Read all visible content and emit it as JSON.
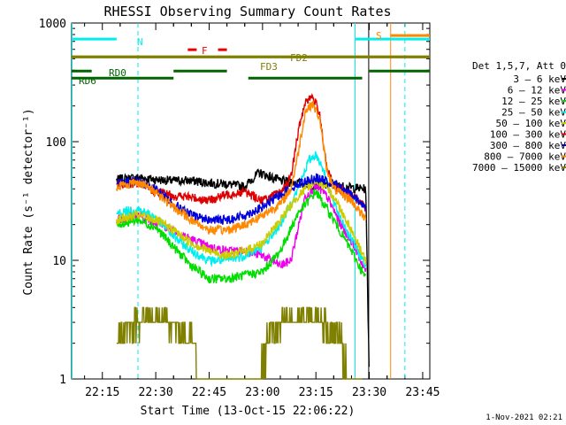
{
  "chart_data": {
    "type": "line",
    "title": "RHESSI Observing Summary Count Rates",
    "xlabel": "Start Time (13-Oct-15 22:06:22)",
    "ylabel": "Count Rate (s⁻¹ detector⁻¹)",
    "y_scale": "log",
    "ylim": [
      1,
      1000
    ],
    "y_ticks": [
      1,
      10,
      100,
      1000
    ],
    "y_tick_labels": [
      "1",
      "10",
      "100",
      "1000"
    ],
    "xlim": [
      "22:06:22",
      "23:47:00"
    ],
    "x_ticks": [
      "22:15",
      "22:30",
      "22:45",
      "23:00",
      "23:15",
      "23:30",
      "23:45"
    ],
    "legend_title": "Det 1,5,7, Att 0",
    "legend_position": "right",
    "timestamp": "1-Nov-2021 02:21",
    "data_start": "22:19:00",
    "data_end": "23:29:30",
    "series": [
      {
        "name": "3 – 6 keV",
        "color": "#000000",
        "x": [
          "22:19",
          "22:25",
          "22:30",
          "22:35",
          "22:40",
          "22:45",
          "22:50",
          "22:55",
          "22:59",
          "23:05",
          "23:10",
          "23:15",
          "23:20",
          "23:25",
          "23:29",
          "23:30"
        ],
        "values": [
          48,
          50,
          48,
          47,
          47,
          45,
          44,
          42,
          55,
          47,
          45,
          43,
          43,
          41,
          40,
          1
        ]
      },
      {
        "name": "6 – 12 keV",
        "color": "#ee00ee",
        "x": [
          "22:19",
          "22:25",
          "22:30",
          "22:35",
          "22:40",
          "22:45",
          "22:50",
          "22:55",
          "23:00",
          "23:05",
          "23:08",
          "23:12",
          "23:15",
          "23:18",
          "23:22",
          "23:26",
          "23:29"
        ],
        "values": [
          22,
          24,
          21,
          18,
          15,
          13,
          12,
          12,
          11,
          9,
          10,
          35,
          42,
          35,
          20,
          13,
          8
        ]
      },
      {
        "name": "12 – 25 keV",
        "color": "#00dd00",
        "x": [
          "22:19",
          "22:25",
          "22:30",
          "22:35",
          "22:40",
          "22:45",
          "22:50",
          "22:55",
          "23:00",
          "23:05",
          "23:10",
          "23:15",
          "23:20",
          "23:25",
          "23:29"
        ],
        "values": [
          20,
          22,
          19,
          13,
          9,
          7,
          7,
          7.5,
          8,
          12,
          25,
          38,
          22,
          12,
          7
        ]
      },
      {
        "name": "25 – 50 keV",
        "color": "#00eeee",
        "x": [
          "22:19",
          "22:25",
          "22:30",
          "22:35",
          "22:40",
          "22:45",
          "22:50",
          "22:55",
          "23:00",
          "23:05",
          "23:10",
          "23:13",
          "23:15",
          "23:17",
          "23:20",
          "23:25",
          "23:29"
        ],
        "values": [
          25,
          27,
          23,
          16,
          12,
          10,
          10,
          11,
          13,
          20,
          40,
          70,
          78,
          60,
          30,
          15,
          9
        ]
      },
      {
        "name": "50 – 100 keV",
        "color": "#cccc00",
        "x": [
          "22:19",
          "22:25",
          "22:30",
          "22:35",
          "22:40",
          "22:45",
          "22:50",
          "22:55",
          "23:00",
          "23:05",
          "23:10",
          "23:15",
          "23:20",
          "23:25",
          "23:29"
        ],
        "values": [
          22,
          24,
          22,
          18,
          14,
          12,
          11,
          12,
          14,
          22,
          35,
          48,
          35,
          18,
          10
        ]
      },
      {
        "name": "100 – 300 keV",
        "color": "#dd0000",
        "x": [
          "22:19",
          "22:25",
          "22:30",
          "22:35",
          "22:40",
          "22:45",
          "22:50",
          "22:55",
          "23:00",
          "23:05",
          "23:08",
          "23:10",
          "23:12",
          "23:14",
          "23:16",
          "23:18",
          "23:20",
          "23:25",
          "23:29"
        ],
        "values": [
          43,
          45,
          38,
          35,
          34,
          32,
          36,
          38,
          32,
          37,
          50,
          120,
          220,
          240,
          180,
          60,
          42,
          36,
          28
        ]
      },
      {
        "name": "300 – 800 keV",
        "color": "#0000dd",
        "x": [
          "22:19",
          "22:25",
          "22:30",
          "22:35",
          "22:40",
          "22:45",
          "22:50",
          "22:55",
          "23:00",
          "23:05",
          "23:10",
          "23:15",
          "23:20",
          "23:25",
          "23:29"
        ],
        "values": [
          45,
          47,
          40,
          30,
          24,
          22,
          22,
          24,
          28,
          36,
          44,
          50,
          44,
          36,
          28
        ]
      },
      {
        "name": "800 – 7000 keV",
        "color": "#ff8800",
        "x": [
          "22:19",
          "22:25",
          "22:30",
          "22:35",
          "22:40",
          "22:45",
          "22:50",
          "22:55",
          "23:00",
          "23:05",
          "23:08",
          "23:10",
          "23:12",
          "23:14",
          "23:16",
          "23:18",
          "23:20",
          "23:25",
          "23:29"
        ],
        "values": [
          42,
          46,
          38,
          28,
          22,
          18,
          18,
          20,
          24,
          30,
          40,
          80,
          180,
          210,
          160,
          60,
          40,
          32,
          22
        ]
      },
      {
        "name": "7000 – 15000 keV",
        "color": "#808000",
        "x": [
          "22:19",
          "22:23",
          "22:28",
          "22:33",
          "22:38",
          "22:43",
          "22:48",
          "22:53",
          "22:58",
          "23:03",
          "23:08",
          "23:13",
          "23:18",
          "23:22",
          "23:25",
          "23:28"
        ],
        "values": [
          2.5,
          4,
          5,
          4,
          3,
          1,
          1,
          1,
          1,
          3,
          4.5,
          5,
          4,
          2,
          1,
          1
        ]
      }
    ],
    "annotations": {
      "lines": [
        {
          "label": "N",
          "color": "#00eeee",
          "style": "solid",
          "x0": "22:06:22",
          "x1": "22:19:00",
          "y_frac": 0.955
        },
        {
          "label": "",
          "color": "#00eeee",
          "style": "solid",
          "x0": "23:26:00",
          "x1": "23:47:00",
          "y_frac": 0.955
        },
        {
          "label": "S",
          "color": "#ff8800",
          "style": "solid",
          "x0": "23:36:00",
          "x1": "23:47:00",
          "y_frac": 0.965
        },
        {
          "label": "F",
          "color": "#ee0000",
          "style": "solid",
          "x0": "22:39:00",
          "x1": "22:41:30",
          "y_frac": 0.925
        },
        {
          "label": "",
          "color": "#ee0000",
          "style": "solid",
          "x0": "22:47:30",
          "x1": "22:50:00",
          "y_frac": 0.925
        },
        {
          "label": "FD2",
          "color": "#808000",
          "style": "solid",
          "x0": "22:06:22",
          "x1": "23:47:00",
          "y_frac": 0.905
        },
        {
          "label": "FD3",
          "color": "#808000",
          "style": "solid",
          "x0": "22:06:22",
          "x1": "23:47:00",
          "y_frac": 0.905
        },
        {
          "label": "RD0",
          "color": "#006400",
          "style": "solid",
          "x0": "22:06:22",
          "x1": "22:12:00",
          "y_frac": 0.865
        },
        {
          "label": "",
          "color": "#006400",
          "style": "solid",
          "x0": "22:35:00",
          "x1": "22:50:00",
          "y_frac": 0.865
        },
        {
          "label": "",
          "color": "#006400",
          "style": "solid",
          "x0": "23:30:00",
          "x1": "23:47:00",
          "y_frac": 0.865
        },
        {
          "label": "RD6",
          "color": "#006400",
          "style": "solid",
          "x0": "22:06:22",
          "x1": "22:35:00",
          "y_frac": 0.845
        },
        {
          "label": "",
          "color": "#006400",
          "style": "solid",
          "x0": "22:56:00",
          "x1": "23:28:00",
          "y_frac": 0.845
        }
      ],
      "vlines": [
        {
          "t": "22:06:30",
          "color": "#00eeee",
          "style": "solid"
        },
        {
          "t": "22:25:00",
          "color": "#00eeee",
          "style": "dashed"
        },
        {
          "t": "23:26:00",
          "color": "#00eeee",
          "style": "solid"
        },
        {
          "t": "23:36:00",
          "color": "#ff8800",
          "style": "solid"
        },
        {
          "t": "23:40:00",
          "color": "#00eeee",
          "style": "dashed"
        },
        {
          "t": "23:29:50",
          "color": "#000000",
          "style": "solid"
        }
      ]
    }
  }
}
